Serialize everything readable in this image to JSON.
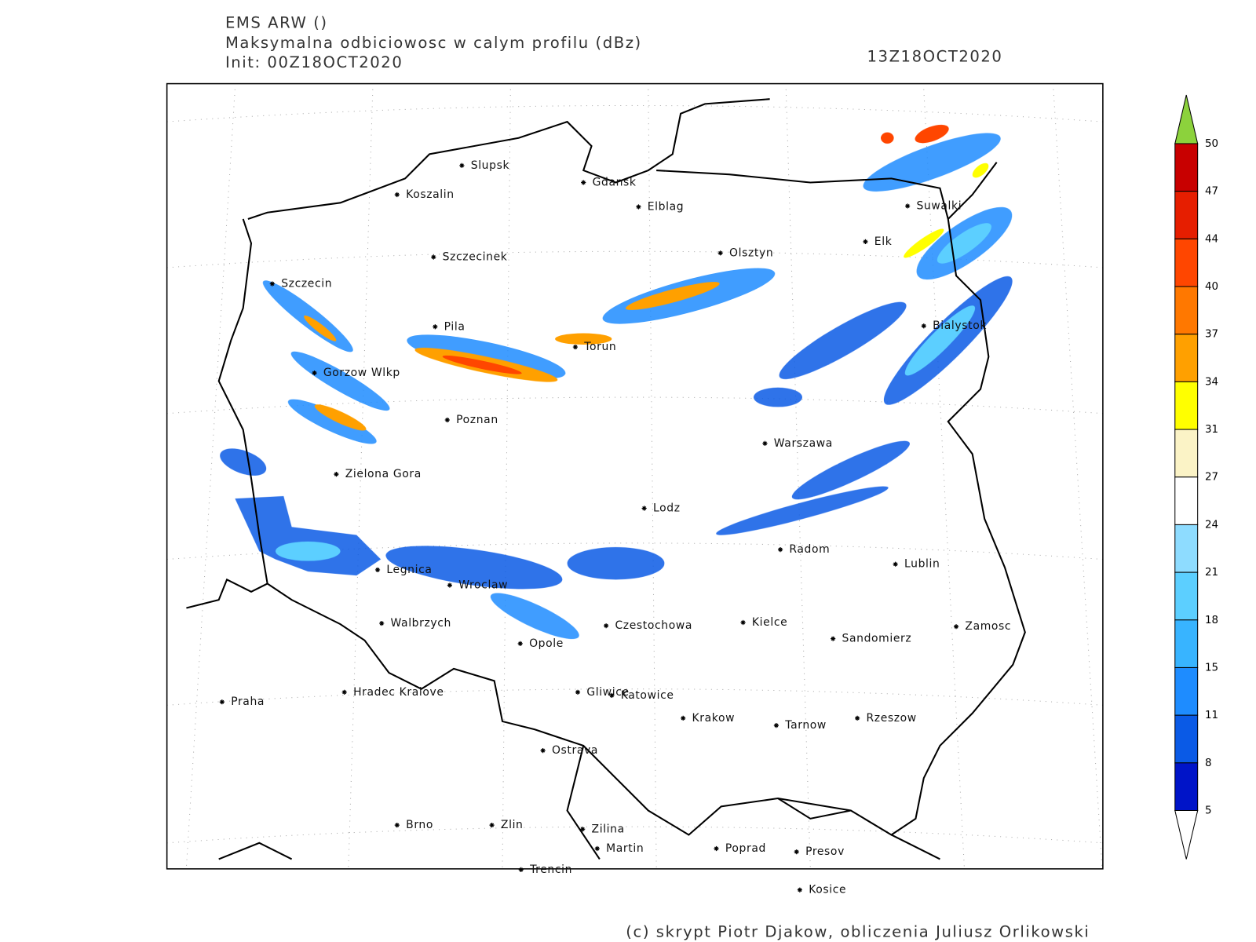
{
  "header": {
    "model": "EMS ARW ()",
    "field": "Maksymalna odbiciowosc w calym profilu (dBz)",
    "init": "Init: 00Z18OCT2020",
    "valid": "13Z18OCT2020"
  },
  "cities": [
    "Slupsk",
    "Koszalin",
    "Gdansk",
    "Elblag",
    "Szczecinek",
    "Olsztyn",
    "Suwalki",
    "Elk",
    "Szczecin",
    "Pila",
    "Torun",
    "Bialystok",
    "Gorzow Wlkp",
    "Poznan",
    "Warszawa",
    "Zielona Gora",
    "Lodz",
    "Radom",
    "Lublin",
    "Legnica",
    "Wroclaw",
    "Walbrzych",
    "Czestochowa",
    "Kielce",
    "Zamosc",
    "Opole",
    "Sandomierz",
    "Hradec Kralove",
    "Gliwice",
    "Katowice",
    "Praha",
    "Krakow",
    "Rzeszow",
    "Tarnow",
    "Ostrava",
    "Brno",
    "Zlin",
    "Zilina",
    "Martin",
    "Poprad",
    "Presov",
    "Trencin",
    "Kosice"
  ],
  "legend": {
    "levels": [
      50,
      47,
      44,
      40,
      37,
      34,
      31,
      27,
      24,
      21,
      18,
      15,
      11,
      8,
      5
    ],
    "colors": [
      "#c80000",
      "#e61e00",
      "#ff4600",
      "#ff7800",
      "#ffa000",
      "#ffff00",
      "#fbf3c6",
      "#ffffff",
      "#8edcff",
      "#5ccfff",
      "#38b4ff",
      "#1e8cff",
      "#0a5ae6",
      "#0014c8"
    ],
    "over_color": "#8cd23c",
    "under_color": "#ffffff"
  },
  "footer": "(c) skrypt Piotr Djakow, obliczenia Juliusz Orlikowski"
}
